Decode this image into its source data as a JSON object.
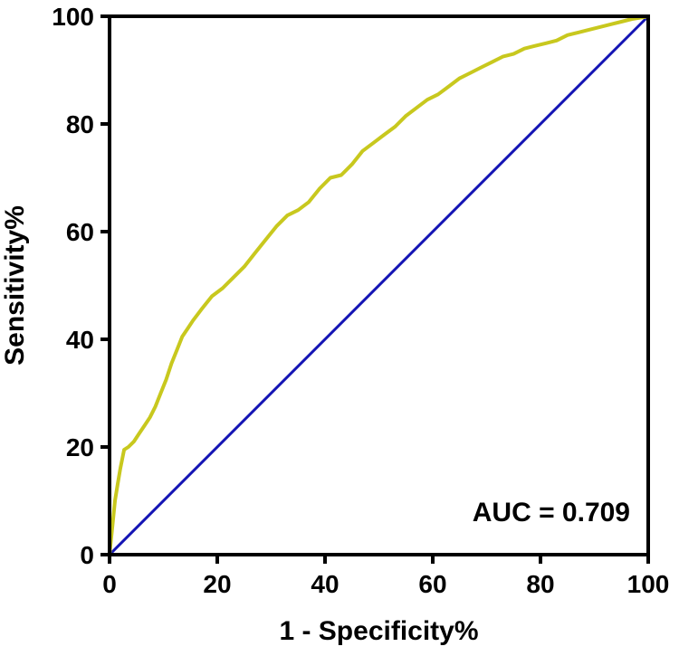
{
  "chart_data": {
    "type": "line",
    "title": "",
    "xlabel": "1 - Specificity%",
    "ylabel": "Sensitivity%",
    "xlim": [
      0,
      100
    ],
    "ylim": [
      0,
      100
    ],
    "x_ticks": [
      "0",
      "20",
      "40",
      "60",
      "80",
      "100"
    ],
    "y_ticks": [
      "0",
      "20",
      "40",
      "60",
      "80",
      "100"
    ],
    "grid": false,
    "legend": "none",
    "annotation": "AUC = 0.709",
    "series": [
      {
        "color": "#c8c81e",
        "x": [
          0,
          0.3,
          0.6,
          1.0,
          1.5,
          2.0,
          2.7,
          3.5,
          4.5,
          5.5,
          6.5,
          7.5,
          8.5,
          9.5,
          10.5,
          11.5,
          12.5,
          13.5,
          14.5,
          15.5,
          17,
          19,
          21,
          23,
          25,
          27,
          29,
          31,
          33,
          35,
          37,
          39,
          41,
          43,
          45,
          47,
          49,
          51,
          53,
          55,
          57,
          59,
          61,
          63,
          65,
          67,
          69,
          71,
          73,
          75,
          77,
          79,
          81,
          83,
          85,
          87,
          89,
          91,
          93,
          95,
          97,
          99,
          100
        ],
        "y": [
          0,
          3,
          6,
          10,
          13,
          16,
          19.5,
          20,
          21,
          22.5,
          24,
          25.5,
          27.5,
          30,
          32.5,
          35.5,
          38,
          40.5,
          42,
          43.5,
          45.5,
          48,
          49.5,
          51.5,
          53.5,
          56,
          58.5,
          61,
          63,
          64,
          65.5,
          68,
          70,
          70.5,
          72.5,
          75,
          76.5,
          78,
          79.5,
          81.5,
          83,
          84.5,
          85.5,
          87,
          88.5,
          89.5,
          90.5,
          91.5,
          92.5,
          93,
          94,
          94.5,
          95,
          95.5,
          96.5,
          97,
          97.5,
          98,
          98.5,
          99,
          99.5,
          99.8,
          100
        ]
      },
      {
        "color": "#1414b4",
        "x": [
          0,
          100
        ],
        "y": [
          0,
          100
        ]
      }
    ]
  }
}
